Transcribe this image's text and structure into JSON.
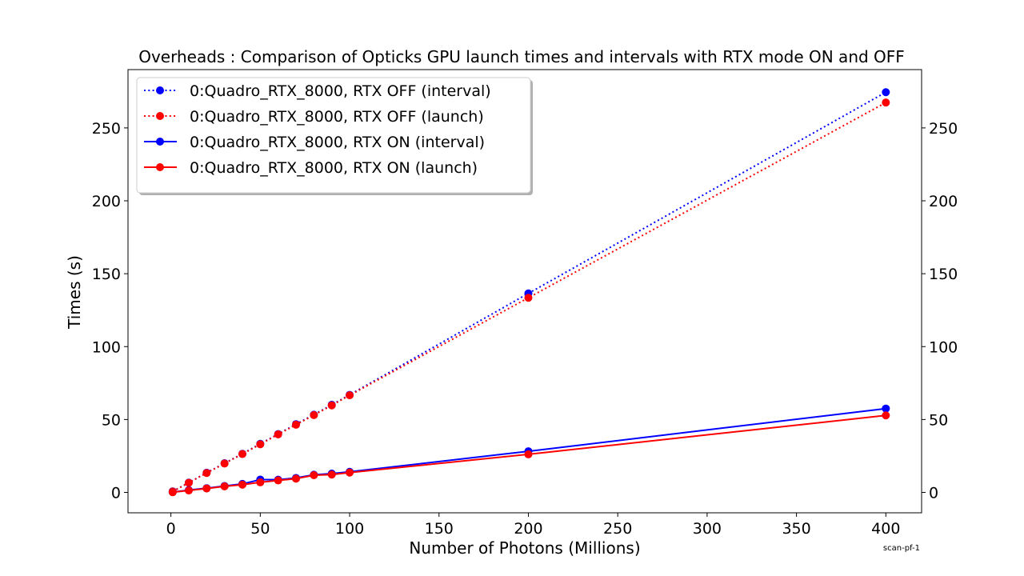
{
  "chart_data": {
    "type": "line",
    "title": "Overheads : Comparison of Opticks GPU launch times and intervals with RTX mode ON and OFF",
    "xlabel": "Number of Photons (Millions)",
    "ylabel": "Times (s)",
    "xlim": [
      -24,
      420
    ],
    "ylim": [
      -14,
      290
    ],
    "xticks": [
      0,
      50,
      100,
      150,
      200,
      250,
      300,
      350,
      400
    ],
    "yticks": [
      0,
      50,
      100,
      150,
      200,
      250
    ],
    "right_yticks": true,
    "grid": false,
    "legend_position": "top-left",
    "footnote": "scan-pf-1",
    "x": [
      1,
      10,
      20,
      30,
      40,
      50,
      60,
      70,
      80,
      90,
      100,
      200,
      400
    ],
    "series": [
      {
        "name": "0:Quadro_RTX_8000, RTX OFF (interval)",
        "color": "#0000ff",
        "linestyle": "dotted",
        "values": [
          0.7,
          6.7,
          13.5,
          20.0,
          26.5,
          33.3,
          40.0,
          46.8,
          53.3,
          60.1,
          66.9,
          136.5,
          274.5
        ]
      },
      {
        "name": "0:Quadro_RTX_8000, RTX OFF (launch)",
        "color": "#ff0000",
        "linestyle": "dotted",
        "values": [
          0.6,
          6.6,
          13.3,
          19.8,
          26.3,
          33.0,
          39.8,
          46.4,
          53.0,
          59.7,
          66.6,
          133.5,
          267.4
        ]
      },
      {
        "name": "0:Quadro_RTX_8000, RTX ON (interval)",
        "color": "#0000ff",
        "linestyle": "solid",
        "values": [
          0.2,
          1.6,
          2.9,
          4.4,
          5.8,
          8.8,
          8.7,
          9.9,
          12.1,
          12.9,
          14.1,
          28.2,
          57.5
        ]
      },
      {
        "name": "0:Quadro_RTX_8000, RTX ON (launch)",
        "color": "#ff0000",
        "linestyle": "solid",
        "values": [
          0.1,
          1.3,
          2.7,
          4.1,
          5.3,
          6.9,
          8.2,
          9.4,
          11.8,
          12.2,
          13.6,
          26.1,
          52.8
        ]
      }
    ]
  }
}
